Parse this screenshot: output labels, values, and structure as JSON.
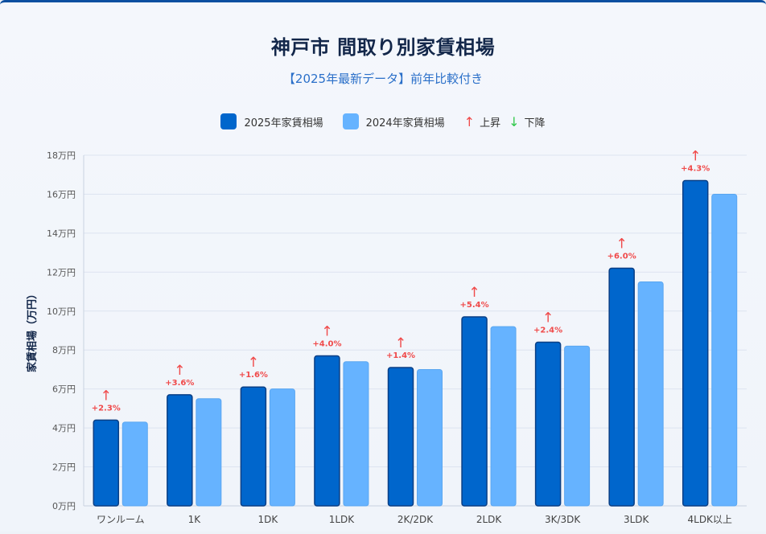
{
  "page": {
    "title": "神戸市 間取り別家賃相場",
    "subtitle": "【2025年最新データ】前年比較付き"
  },
  "legend": {
    "series_2025": "2025年家賃相場",
    "series_2024": "2024年家賃相場",
    "up_symbol": "↑",
    "up_label": "上昇",
    "down_symbol": "↓",
    "down_label": "下降"
  },
  "colors": {
    "series_2025": "#0066cc",
    "series_2025_border": "#0a3f85",
    "series_2024": "#66b3ff",
    "up": "#f04a4a",
    "down": "#2fc84a",
    "grid": "#dde4f0"
  },
  "chart_data": {
    "type": "bar",
    "categories": [
      "ワンルーム",
      "1K",
      "1DK",
      "1LDK",
      "2K/2DK",
      "2LDK",
      "3K/3DK",
      "3LDK",
      "4LDK以上"
    ],
    "series": [
      {
        "name": "2025年家賃相場",
        "values": [
          4.4,
          5.7,
          6.1,
          7.7,
          7.1,
          9.7,
          8.4,
          12.2,
          16.7
        ]
      },
      {
        "name": "2024年家賃相場",
        "values": [
          4.3,
          5.5,
          6.0,
          7.4,
          7.0,
          9.2,
          8.2,
          11.5,
          16.0
        ]
      }
    ],
    "change_labels": [
      "+2.3%",
      "+3.6%",
      "+1.6%",
      "+4.0%",
      "+1.4%",
      "+5.4%",
      "+2.4%",
      "+6.0%",
      "+4.3%"
    ],
    "change_direction": [
      "up",
      "up",
      "up",
      "up",
      "up",
      "up",
      "up",
      "up",
      "up"
    ],
    "ylabel": "家賃相場（万円）",
    "ylim": [
      0,
      18
    ],
    "yticks": [
      0,
      2,
      4,
      6,
      8,
      10,
      12,
      14,
      16,
      18
    ],
    "ytick_labels": [
      "0万円",
      "2万円",
      "4万円",
      "6万円",
      "8万円",
      "10万円",
      "12万円",
      "14万円",
      "16万円",
      "18万円"
    ],
    "grid": true,
    "legend_position": "top"
  }
}
